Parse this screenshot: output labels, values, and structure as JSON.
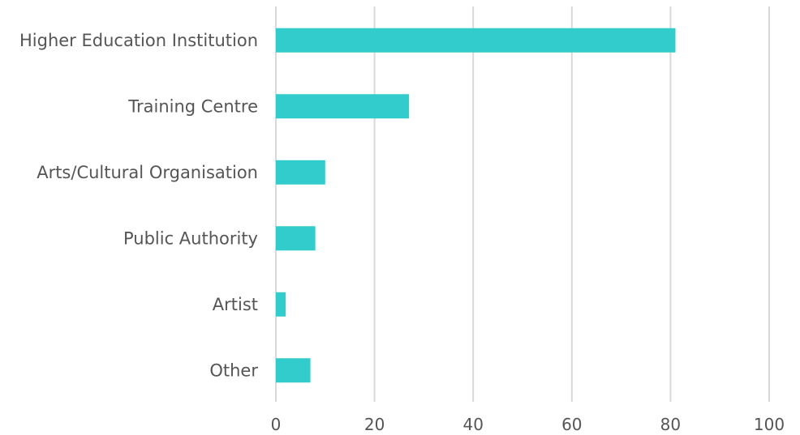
{
  "chart_data": {
    "type": "bar",
    "orientation": "horizontal",
    "title": "",
    "xlabel": "",
    "ylabel": "",
    "categories": [
      "Higher Education Institution",
      "Training Centre",
      "Arts/Cultural Organisation",
      "Public Authority",
      "Artist",
      "Other"
    ],
    "values": [
      81,
      27,
      10,
      8,
      2,
      7
    ],
    "xlim": [
      0,
      100
    ],
    "xticks": [
      "0",
      "20",
      "40",
      "60",
      "80",
      "100"
    ],
    "grid": "vertical",
    "legend": "none",
    "bar_color": "#33CCCC",
    "grid_color": "#D9D9D9"
  }
}
